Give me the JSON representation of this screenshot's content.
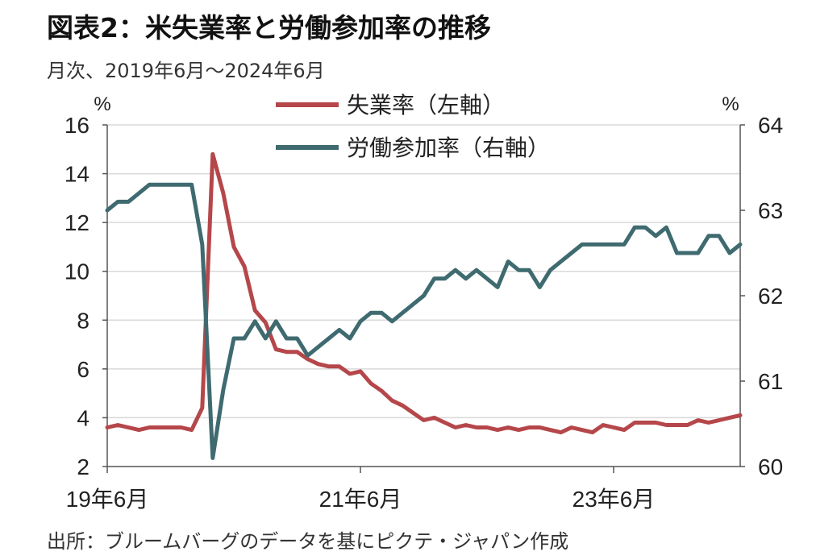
{
  "title": "図表2：米失業率と労働参加率の推移",
  "subtitle": "月次、2019年6月～2024年6月",
  "source": "出所：ブルームバーグのデータを基にピクテ・ジャパン作成",
  "colors": {
    "unemployment": "#b5474a",
    "participation": "#3f6b70",
    "grid": "#d9d9d9",
    "axis": "#555555"
  },
  "chart_data": {
    "type": "line",
    "x": [
      "2019-06",
      "2019-07",
      "2019-08",
      "2019-09",
      "2019-10",
      "2019-11",
      "2019-12",
      "2020-01",
      "2020-02",
      "2020-03",
      "2020-04",
      "2020-05",
      "2020-06",
      "2020-07",
      "2020-08",
      "2020-09",
      "2020-10",
      "2020-11",
      "2020-12",
      "2021-01",
      "2021-02",
      "2021-03",
      "2021-04",
      "2021-05",
      "2021-06",
      "2021-07",
      "2021-08",
      "2021-09",
      "2021-10",
      "2021-11",
      "2021-12",
      "2022-01",
      "2022-02",
      "2022-03",
      "2022-04",
      "2022-05",
      "2022-06",
      "2022-07",
      "2022-08",
      "2022-09",
      "2022-10",
      "2022-11",
      "2022-12",
      "2023-01",
      "2023-02",
      "2023-03",
      "2023-04",
      "2023-05",
      "2023-06",
      "2023-07",
      "2023-08",
      "2023-09",
      "2023-10",
      "2023-11",
      "2023-12",
      "2024-01",
      "2024-02",
      "2024-03",
      "2024-04",
      "2024-05",
      "2024-06"
    ],
    "xticks": [
      "19年6月",
      "21年6月",
      "23年6月"
    ],
    "left_axis": {
      "unit": "%",
      "ylim": [
        2,
        16
      ],
      "ticks": [
        "16",
        "14",
        "12",
        "10",
        "8",
        "6",
        "4",
        "2"
      ]
    },
    "right_axis": {
      "unit": "%",
      "ylim": [
        60,
        64
      ],
      "ticks": [
        "64",
        "63",
        "62",
        "61",
        "60"
      ]
    },
    "legend_position": "top-center",
    "series": [
      {
        "name": "失業率（左軸）",
        "axis": "left",
        "values": [
          3.6,
          3.7,
          3.6,
          3.5,
          3.6,
          3.6,
          3.6,
          3.6,
          3.5,
          4.4,
          14.8,
          13.2,
          11.0,
          10.2,
          8.4,
          7.9,
          6.8,
          6.7,
          6.7,
          6.4,
          6.2,
          6.1,
          6.1,
          5.8,
          5.9,
          5.4,
          5.1,
          4.7,
          4.5,
          4.2,
          3.9,
          4.0,
          3.8,
          3.6,
          3.7,
          3.6,
          3.6,
          3.5,
          3.6,
          3.5,
          3.6,
          3.6,
          3.5,
          3.4,
          3.6,
          3.5,
          3.4,
          3.7,
          3.6,
          3.5,
          3.8,
          3.8,
          3.8,
          3.7,
          3.7,
          3.7,
          3.9,
          3.8,
          3.9,
          4.0,
          4.1
        ]
      },
      {
        "name": "労働参加率（右軸）",
        "axis": "right",
        "values": [
          63.0,
          63.1,
          63.1,
          63.2,
          63.3,
          63.3,
          63.3,
          63.3,
          63.3,
          62.6,
          60.1,
          60.9,
          61.5,
          61.5,
          61.7,
          61.5,
          61.7,
          61.5,
          61.5,
          61.3,
          61.4,
          61.5,
          61.6,
          61.5,
          61.7,
          61.8,
          61.8,
          61.7,
          61.8,
          61.9,
          62.0,
          62.2,
          62.2,
          62.3,
          62.2,
          62.3,
          62.2,
          62.1,
          62.4,
          62.3,
          62.3,
          62.1,
          62.3,
          62.4,
          62.5,
          62.6,
          62.6,
          62.6,
          62.6,
          62.6,
          62.8,
          62.8,
          62.7,
          62.8,
          62.5,
          62.5,
          62.5,
          62.7,
          62.7,
          62.5,
          62.6
        ]
      }
    ]
  }
}
